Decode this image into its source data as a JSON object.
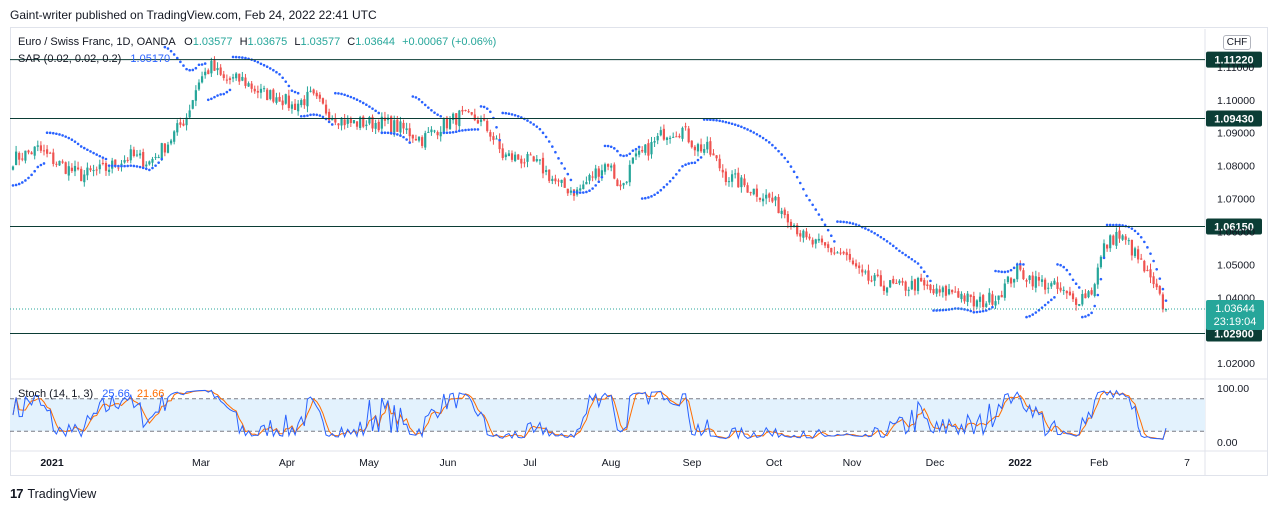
{
  "header": {
    "publisher_line": "Gaint-writer published on TradingView.com, Feb 24, 2022 22:41 UTC"
  },
  "legend": {
    "symbol": "Euro / Swiss Franc, 1D, OANDA",
    "o_label": "O",
    "o_value": "1.03577",
    "h_label": "H",
    "h_value": "1.03675",
    "l_label": "L",
    "l_value": "1.03577",
    "c_label": "C",
    "c_value": "1.03644",
    "change": "+0.00067 (+0.06%)",
    "sar_label": "SAR (0.02, 0.02, 0.2)",
    "sar_value": "1.05170",
    "stoch_label": "Stoch (14, 1, 3)",
    "stoch_k": "25.66",
    "stoch_d": "21.66"
  },
  "currency_badge": "CHF",
  "footer": {
    "brand": "TradingView",
    "logo": "17"
  },
  "colors": {
    "up": "#26a69a",
    "down": "#ef5350",
    "sar": "#2962ff",
    "hline": "#0b3d35",
    "stoch_k": "#2962ff",
    "stoch_d": "#ff6d00",
    "stoch_band": "#e3f2fd",
    "text": "#131722"
  },
  "chart_data": {
    "type": "candlestick",
    "price_axis": {
      "range": [
        1.0155,
        1.1215
      ],
      "ticks": [
        "1.11000",
        "1.10000",
        "1.09000",
        "1.08000",
        "1.07000",
        "1.06000",
        "1.05000",
        "1.04000",
        "1.02000"
      ],
      "tick_values": [
        1.11,
        1.1,
        1.09,
        1.08,
        1.07,
        1.06,
        1.05,
        1.04,
        1.02
      ]
    },
    "time_axis": {
      "labels": [
        "2021",
        "Mar",
        "Apr",
        "May",
        "Jun",
        "Jul",
        "Aug",
        "Sep",
        "Oct",
        "Nov",
        "Dec",
        "2022",
        "Feb",
        "7"
      ],
      "bold": [
        "2021",
        "2022"
      ]
    },
    "horizontal_levels": [
      {
        "value": 1.1122,
        "label": "1.11220"
      },
      {
        "value": 1.0943,
        "label": "1.09430"
      },
      {
        "value": 1.0615,
        "label": "1.06150"
      },
      {
        "value": 1.029,
        "label": "1.02900"
      }
    ],
    "last_price": {
      "value": 1.03644,
      "label": "1.03644",
      "countdown": "23:19:04"
    },
    "close_path": [
      [
        0,
        1.082
      ],
      [
        8,
        1.085
      ],
      [
        14,
        1.081
      ],
      [
        22,
        1.077
      ],
      [
        30,
        1.079
      ],
      [
        38,
        1.083
      ],
      [
        44,
        1.081
      ],
      [
        50,
        1.087
      ],
      [
        56,
        1.095
      ],
      [
        60,
        1.106
      ],
      [
        64,
        1.11
      ],
      [
        68,
        1.106
      ],
      [
        74,
        1.106
      ],
      [
        80,
        1.102
      ],
      [
        86,
        1.101
      ],
      [
        90,
        1.098
      ],
      [
        96,
        1.101
      ],
      [
        102,
        1.096
      ],
      [
        108,
        1.093
      ],
      [
        114,
        1.093
      ],
      [
        120,
        1.093
      ],
      [
        126,
        1.091
      ],
      [
        132,
        1.088
      ],
      [
        138,
        1.092
      ],
      [
        144,
        1.095
      ],
      [
        150,
        1.094
      ],
      [
        154,
        1.09
      ],
      [
        158,
        1.083
      ],
      [
        164,
        1.082
      ],
      [
        170,
        1.08
      ],
      [
        176,
        1.074
      ],
      [
        182,
        1.072
      ],
      [
        188,
        1.078
      ],
      [
        192,
        1.081
      ],
      [
        196,
        1.073
      ],
      [
        200,
        1.081
      ],
      [
        206,
        1.086
      ],
      [
        210,
        1.09
      ],
      [
        216,
        1.091
      ],
      [
        220,
        1.086
      ],
      [
        224,
        1.085
      ],
      [
        230,
        1.077
      ],
      [
        236,
        1.074
      ],
      [
        244,
        1.07
      ],
      [
        250,
        1.065
      ],
      [
        256,
        1.057
      ],
      [
        262,
        1.055
      ],
      [
        268,
        1.053
      ],
      [
        274,
        1.046
      ],
      [
        280,
        1.044
      ],
      [
        286,
        1.043
      ],
      [
        292,
        1.044
      ],
      [
        298,
        1.041
      ],
      [
        304,
        1.042
      ],
      [
        310,
        1.038
      ],
      [
        314,
        1.039
      ],
      [
        318,
        1.041
      ],
      [
        324,
        1.048
      ],
      [
        330,
        1.045
      ],
      [
        336,
        1.043
      ],
      [
        342,
        1.039
      ],
      [
        348,
        1.042
      ],
      [
        352,
        1.055
      ],
      [
        356,
        1.059
      ],
      [
        360,
        1.056
      ],
      [
        364,
        1.05
      ],
      [
        368,
        1.043
      ],
      [
        372,
        1.036
      ]
    ],
    "sar_segments": [
      {
        "side": "below",
        "from": 0,
        "to": 10,
        "start": 1.074
      },
      {
        "side": "above",
        "from": 11,
        "to": 30,
        "start": 1.09
      },
      {
        "side": "below",
        "from": 31,
        "to": 48,
        "start": 1.08
      },
      {
        "side": "above",
        "from": 49,
        "to": 62,
        "start": 1.116
      },
      {
        "side": "below",
        "from": 63,
        "to": 70,
        "start": 1.1
      },
      {
        "side": "above",
        "from": 71,
        "to": 92,
        "start": 1.113
      },
      {
        "side": "below",
        "from": 93,
        "to": 103,
        "start": 1.095
      },
      {
        "side": "above",
        "from": 104,
        "to": 118,
        "start": 1.102
      },
      {
        "side": "below",
        "from": 119,
        "to": 128,
        "start": 1.09
      },
      {
        "side": "above",
        "from": 129,
        "to": 138,
        "start": 1.101
      },
      {
        "side": "below",
        "from": 139,
        "to": 150,
        "start": 1.09
      },
      {
        "side": "above",
        "from": 151,
        "to": 157,
        "start": 1.098
      },
      {
        "side": "above",
        "from": 158,
        "to": 180,
        "start": 1.096
      },
      {
        "side": "below",
        "from": 181,
        "to": 190,
        "start": 1.072
      },
      {
        "side": "above",
        "from": 191,
        "to": 202,
        "start": 1.086
      },
      {
        "side": "below",
        "from": 203,
        "to": 222,
        "start": 1.07
      },
      {
        "side": "above",
        "from": 223,
        "to": 265,
        "start": 1.094
      },
      {
        "side": "above",
        "from": 266,
        "to": 296,
        "start": 1.063
      },
      {
        "side": "below",
        "from": 297,
        "to": 316,
        "start": 1.036
      },
      {
        "side": "above",
        "from": 317,
        "to": 326,
        "start": 1.048
      },
      {
        "side": "below",
        "from": 327,
        "to": 336,
        "start": 1.034
      },
      {
        "side": "above",
        "from": 337,
        "to": 344,
        "start": 1.05
      },
      {
        "side": "below",
        "from": 345,
        "to": 352,
        "start": 1.034
      },
      {
        "side": "above",
        "from": 353,
        "to": 372,
        "start": 1.062
      }
    ],
    "stoch": {
      "range": [
        0,
        100
      ],
      "ticks": [
        "100.00",
        "0.00"
      ],
      "band": [
        80,
        20
      ],
      "k_last": 25.66,
      "d_last": 21.66
    }
  }
}
